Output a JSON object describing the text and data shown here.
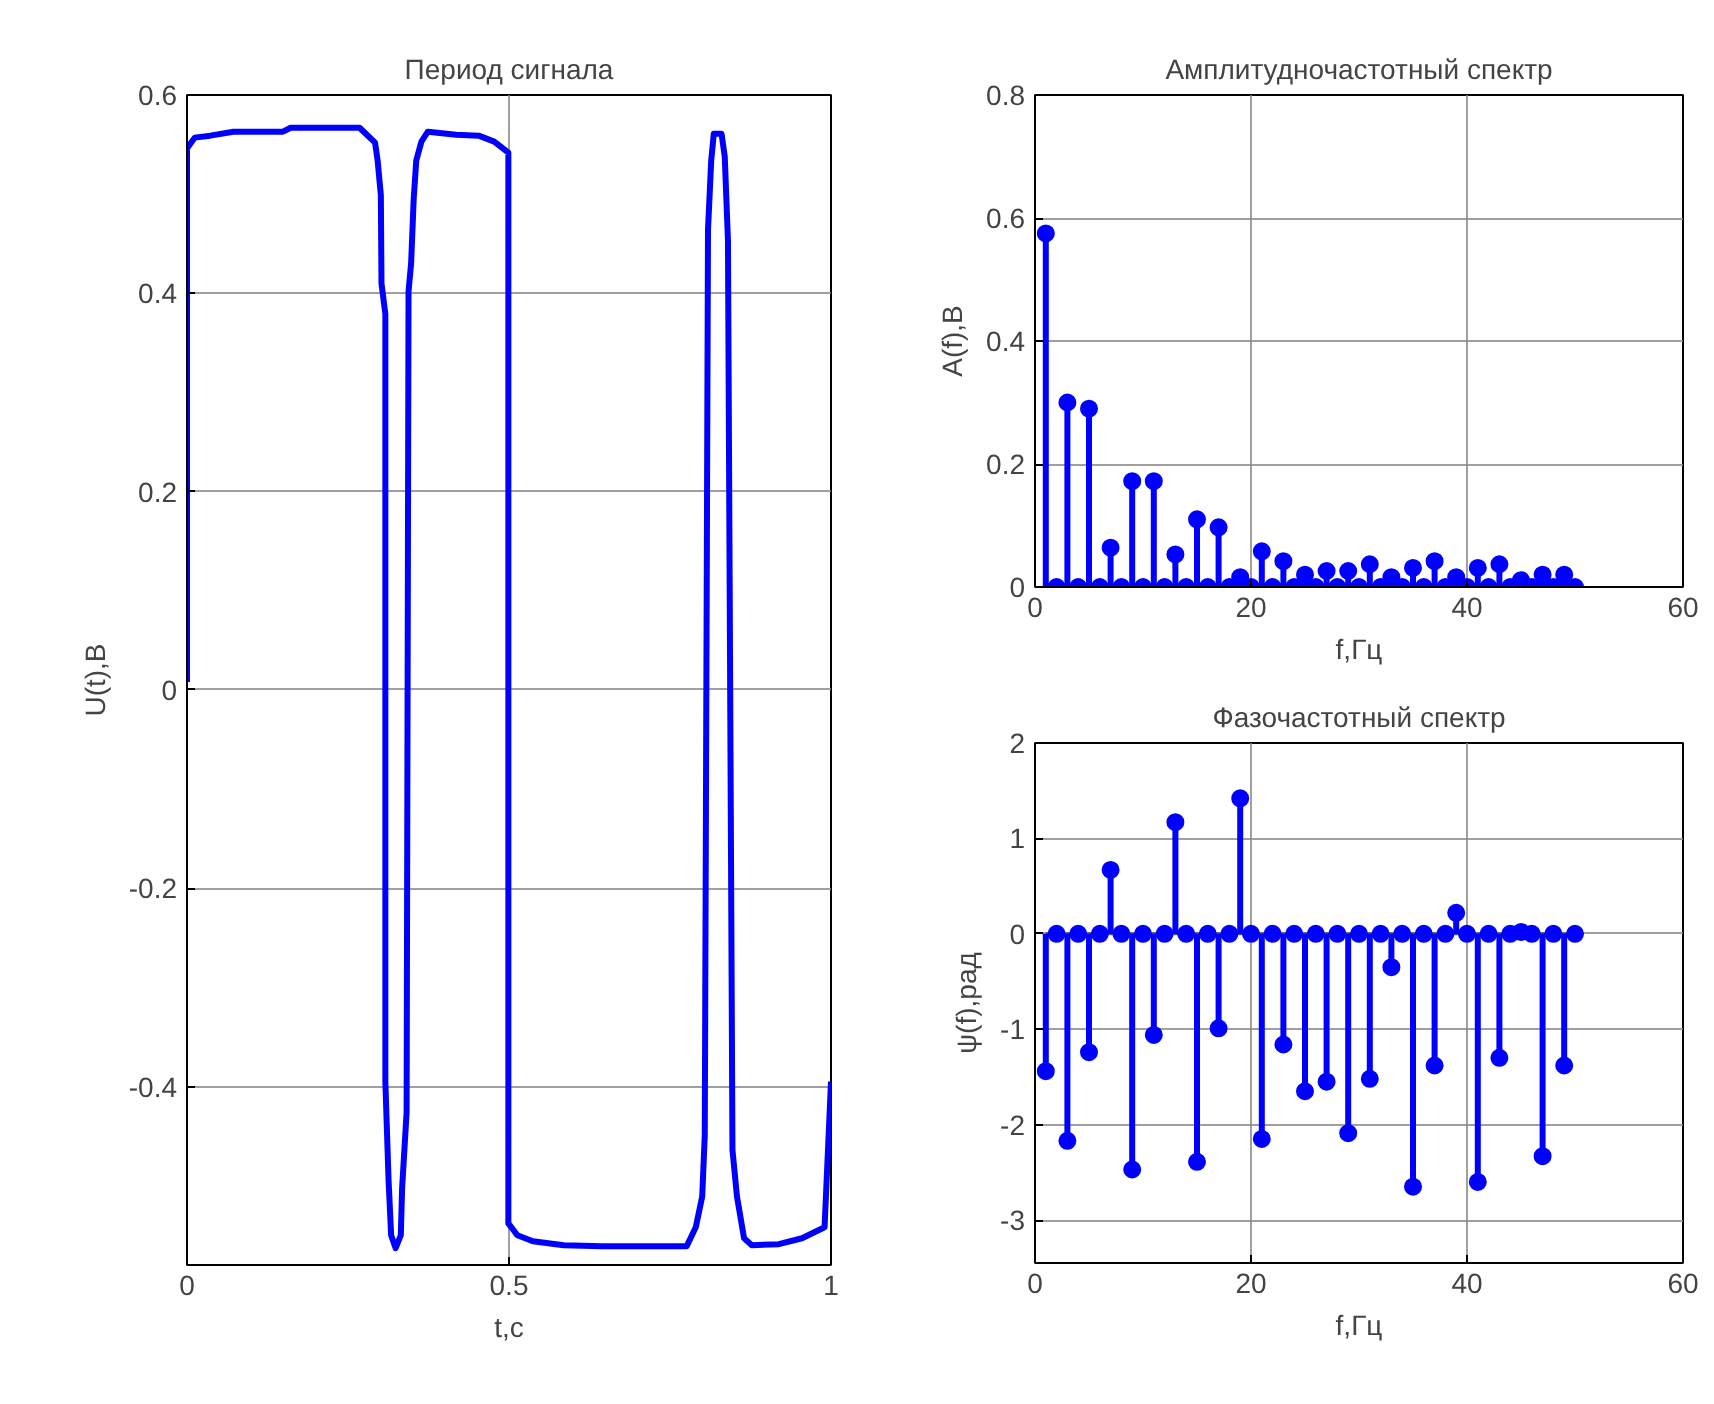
{
  "chart_data": [
    {
      "type": "line",
      "title": "Период сигнала",
      "xlabel": "t,c",
      "ylabel": "U(t),B",
      "xlim": [
        0,
        1
      ],
      "xticks": [
        0,
        0.5,
        1
      ],
      "ylim": [
        -0.58,
        0.6
      ],
      "yticks": [
        -0.4,
        -0.2,
        0,
        0.2,
        0.4,
        0.6
      ],
      "grid": true,
      "marker": "none",
      "line_style": "solid",
      "series": [
        {
          "color": "#0000ff",
          "x": [
            0,
            0,
            0.012,
            0.036,
            0.072,
            0.149,
            0.161,
            0.268,
            0.292,
            0.296,
            0.301,
            0.302,
            0.308,
            0.308,
            0.313,
            0.317,
            0.324,
            0.332,
            0.334,
            0.341,
            0.344,
            0.348,
            0.352,
            0.356,
            0.364,
            0.374,
            0.418,
            0.453,
            0.477,
            0.499,
            0.499,
            0.513,
            0.537,
            0.585,
            0.644,
            0.776,
            0.79,
            0.8,
            0.804,
            0.809,
            0.814,
            0.818,
            0.83,
            0.835,
            0.84,
            0.847,
            0.854,
            0.865,
            0.877,
            0.919,
            0.955,
            0.99,
            1.0
          ],
          "values": [
            0.008,
            0.546,
            0.557,
            0.559,
            0.563,
            0.563,
            0.567,
            0.567,
            0.552,
            0.534,
            0.499,
            0.41,
            0.379,
            -0.395,
            -0.495,
            -0.55,
            -0.563,
            -0.55,
            -0.503,
            -0.426,
            0.402,
            0.43,
            0.495,
            0.534,
            0.553,
            0.563,
            0.56,
            0.559,
            0.553,
            0.542,
            -0.538,
            -0.55,
            -0.556,
            -0.56,
            -0.561,
            -0.561,
            -0.542,
            -0.511,
            -0.449,
            0.464,
            0.534,
            0.561,
            0.561,
            0.538,
            0.453,
            -0.464,
            -0.511,
            -0.553,
            -0.56,
            -0.559,
            -0.553,
            -0.542,
            -0.395
          ]
        }
      ]
    },
    {
      "type": "lollipop",
      "title": "Амплитудночастотный спектр",
      "xlabel": "f,Гц",
      "ylabel": "A(f),B",
      "xlim": [
        0,
        60
      ],
      "xticks": [
        0,
        20,
        40,
        60
      ],
      "ylim": [
        0,
        0.8
      ],
      "yticks": [
        0,
        0.2,
        0.4,
        0.6,
        0.8
      ],
      "grid": true,
      "marker": "circle",
      "x": [
        1,
        2,
        3,
        4,
        5,
        6,
        7,
        8,
        9,
        10,
        11,
        12,
        13,
        14,
        15,
        16,
        17,
        18,
        19,
        20,
        21,
        22,
        23,
        24,
        25,
        26,
        27,
        28,
        29,
        30,
        31,
        32,
        33,
        34,
        35,
        36,
        37,
        38,
        39,
        40,
        41,
        42,
        43,
        44,
        45,
        46,
        47,
        48,
        49,
        50
      ],
      "series": [
        {
          "color": "#0000ff",
          "values": [
            0.575,
            0,
            0.3,
            0,
            0.29,
            0,
            0.064,
            0,
            0.172,
            0,
            0.172,
            0,
            0.053,
            0,
            0.11,
            0,
            0.097,
            0,
            0.016,
            0,
            0.058,
            0,
            0.042,
            0,
            0.02,
            0,
            0.026,
            0,
            0.026,
            0,
            0.037,
            0,
            0.016,
            0,
            0.031,
            0,
            0.042,
            0,
            0.016,
            0,
            0.031,
            0,
            0.037,
            0,
            0.011,
            0,
            0.02,
            0,
            0.02,
            0
          ]
        }
      ]
    },
    {
      "type": "lollipop",
      "title": "Фазочастотный спектр",
      "xlabel": "f,Гц",
      "ylabel": "ψ(f),рад",
      "xlim": [
        0,
        60
      ],
      "xticks": [
        0,
        20,
        40,
        60
      ],
      "ylim": [
        -3.45,
        2
      ],
      "yticks": [
        -3,
        -2,
        -1,
        0,
        1,
        2
      ],
      "grid": true,
      "marker": "circle",
      "x": [
        1,
        2,
        3,
        4,
        5,
        6,
        7,
        8,
        9,
        10,
        11,
        12,
        13,
        14,
        15,
        16,
        17,
        18,
        19,
        20,
        21,
        22,
        23,
        24,
        25,
        26,
        27,
        28,
        29,
        30,
        31,
        32,
        33,
        34,
        35,
        36,
        37,
        38,
        39,
        40,
        41,
        42,
        43,
        44,
        45,
        46,
        47,
        48,
        49,
        50
      ],
      "series": [
        {
          "color": "#0000ff",
          "values": [
            -1.44,
            0,
            -2.17,
            0,
            -1.24,
            0,
            0.67,
            0,
            -2.47,
            0,
            -1.06,
            0,
            1.17,
            0,
            -2.39,
            0,
            -0.99,
            0,
            1.42,
            0,
            -2.15,
            0,
            -1.16,
            0,
            -1.65,
            0,
            -1.55,
            0,
            -2.09,
            0,
            -1.52,
            0,
            -0.35,
            0,
            -2.65,
            0,
            -1.38,
            0,
            0.22,
            0,
            -2.6,
            0,
            -1.3,
            0,
            0.02,
            0,
            -2.33,
            0,
            -1.38,
            0
          ]
        }
      ]
    }
  ]
}
